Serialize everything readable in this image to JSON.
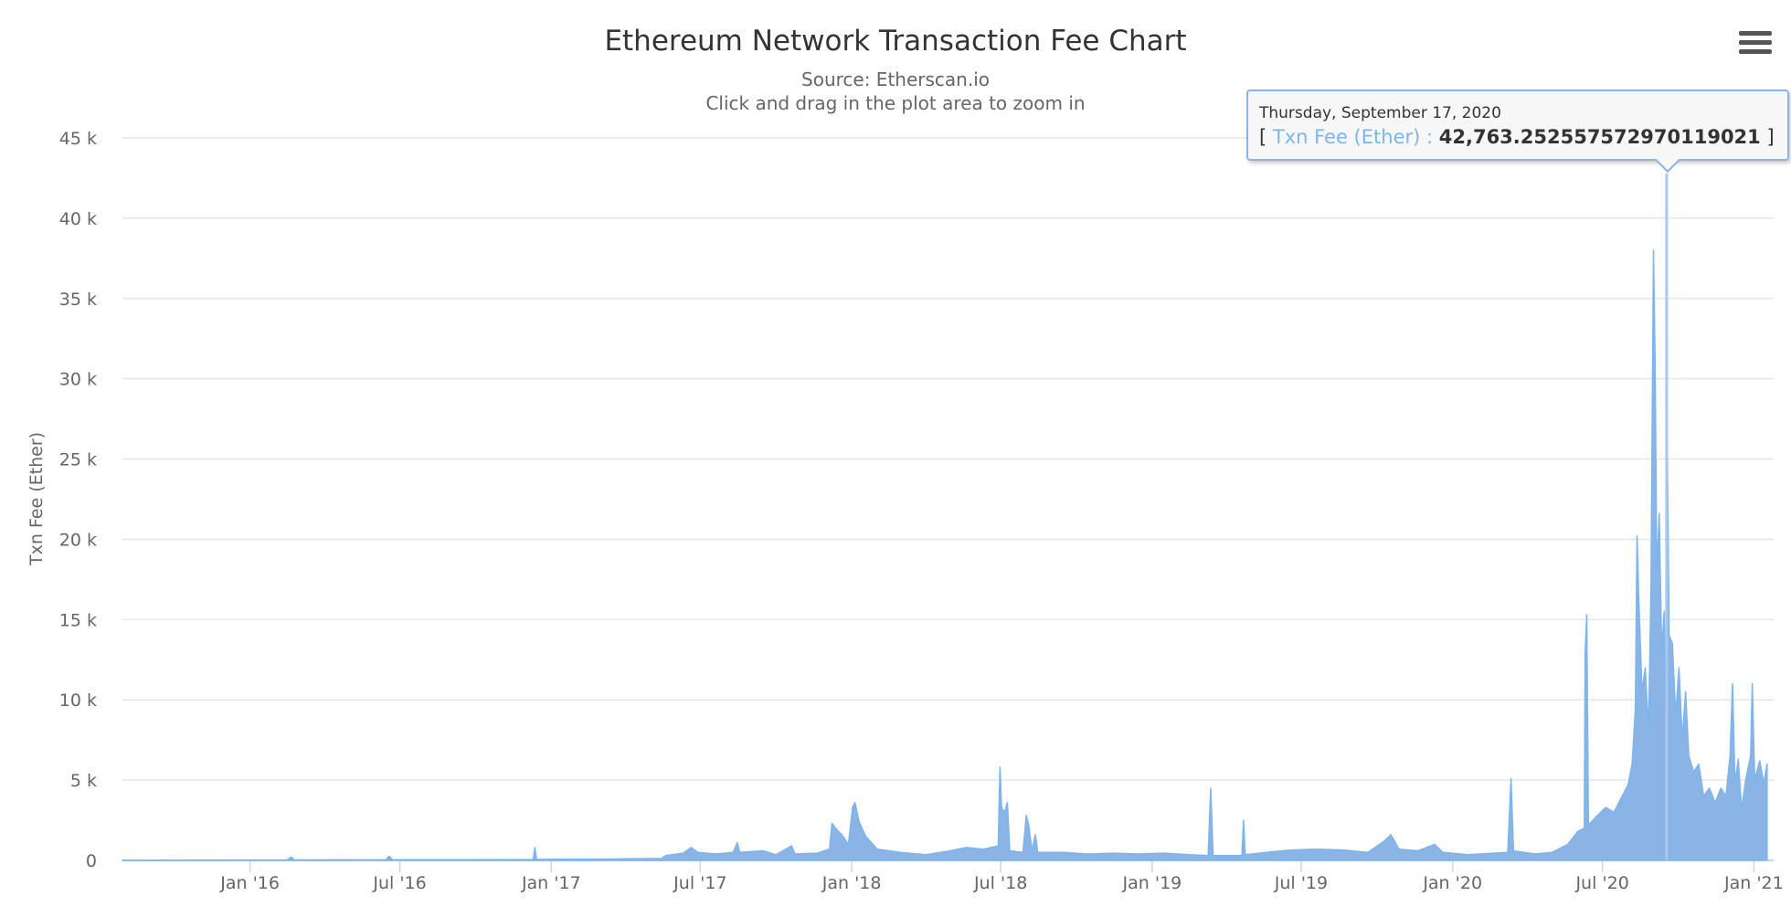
{
  "chart_data": {
    "type": "area",
    "title": "Ethereum Network Transaction Fee Chart",
    "subtitle_lines": [
      "Source: Etherscan.io",
      "Click and drag in the plot area to zoom in"
    ],
    "ylabel": "Txn Fee (Ether)",
    "xlabel": "",
    "ylim": [
      0,
      45000
    ],
    "yticks": [
      0,
      5000,
      10000,
      15000,
      20000,
      25000,
      30000,
      35000,
      40000,
      45000
    ],
    "ytick_labels": [
      "0",
      "5 k",
      "10 k",
      "15 k",
      "20 k",
      "25 k",
      "30 k",
      "35 k",
      "40 k",
      "45 k"
    ],
    "xlim": [
      "2015-07-30",
      "2021-01-25"
    ],
    "xticks": [
      "2016-01-01",
      "2016-07-01",
      "2017-01-01",
      "2017-07-01",
      "2018-01-01",
      "2018-07-01",
      "2019-01-01",
      "2019-07-01",
      "2020-01-01",
      "2020-07-01",
      "2021-01-01"
    ],
    "xtick_labels": [
      "Jan '16",
      "Jul '16",
      "Jan '17",
      "Jul '17",
      "Jan '18",
      "Jul '18",
      "Jan '19",
      "Jul '19",
      "Jan '20",
      "Jul '20",
      "Jan '21"
    ],
    "grid": true,
    "legend": "none",
    "colors": {
      "series": "#7cb5ec",
      "fill": "#8ab4e6",
      "grid": "#e6e6e6",
      "axis": "#ccd6eb"
    },
    "series": [
      {
        "name": "Txn Fee (Ether)",
        "data": [
          [
            "2015-07-30",
            5
          ],
          [
            "2015-10-01",
            15
          ],
          [
            "2016-01-01",
            20
          ],
          [
            "2016-02-15",
            30
          ],
          [
            "2016-02-20",
            200
          ],
          [
            "2016-02-24",
            30
          ],
          [
            "2016-06-14",
            40
          ],
          [
            "2016-06-18",
            260
          ],
          [
            "2016-06-22",
            40
          ],
          [
            "2016-12-01",
            50
          ],
          [
            "2016-12-10",
            50
          ],
          [
            "2016-12-12",
            800
          ],
          [
            "2016-12-14",
            60
          ],
          [
            "2017-03-01",
            80
          ],
          [
            "2017-05-15",
            120
          ],
          [
            "2017-05-20",
            300
          ],
          [
            "2017-06-10",
            450
          ],
          [
            "2017-06-20",
            800
          ],
          [
            "2017-06-28",
            500
          ],
          [
            "2017-07-20",
            400
          ],
          [
            "2017-08-10",
            500
          ],
          [
            "2017-08-15",
            1100
          ],
          [
            "2017-08-18",
            500
          ],
          [
            "2017-09-15",
            600
          ],
          [
            "2017-10-01",
            350
          ],
          [
            "2017-10-20",
            900
          ],
          [
            "2017-10-24",
            400
          ],
          [
            "2017-11-20",
            450
          ],
          [
            "2017-12-05",
            700
          ],
          [
            "2017-12-08",
            2300
          ],
          [
            "2017-12-14",
            1900
          ],
          [
            "2017-12-20",
            1600
          ],
          [
            "2017-12-28",
            1000
          ],
          [
            "2018-01-02",
            3300
          ],
          [
            "2018-01-05",
            3600
          ],
          [
            "2018-01-10",
            2400
          ],
          [
            "2018-01-18",
            1500
          ],
          [
            "2018-02-01",
            700
          ],
          [
            "2018-03-01",
            500
          ],
          [
            "2018-04-01",
            350
          ],
          [
            "2018-05-01",
            600
          ],
          [
            "2018-05-20",
            800
          ],
          [
            "2018-06-10",
            700
          ],
          [
            "2018-06-28",
            900
          ],
          [
            "2018-06-30",
            5800
          ],
          [
            "2018-07-02",
            3300
          ],
          [
            "2018-07-06",
            3000
          ],
          [
            "2018-07-09",
            3600
          ],
          [
            "2018-07-12",
            600
          ],
          [
            "2018-07-28",
            500
          ],
          [
            "2018-08-01",
            2800
          ],
          [
            "2018-08-04",
            2200
          ],
          [
            "2018-08-08",
            600
          ],
          [
            "2018-08-12",
            1600
          ],
          [
            "2018-08-15",
            500
          ],
          [
            "2018-09-15",
            500
          ],
          [
            "2018-10-15",
            400
          ],
          [
            "2018-11-15",
            450
          ],
          [
            "2018-12-15",
            400
          ],
          [
            "2019-01-15",
            450
          ],
          [
            "2019-02-15",
            350
          ],
          [
            "2019-03-10",
            300
          ],
          [
            "2019-03-13",
            4500
          ],
          [
            "2019-03-16",
            300
          ],
          [
            "2019-04-20",
            300
          ],
          [
            "2019-04-22",
            2500
          ],
          [
            "2019-04-24",
            350
          ],
          [
            "2019-05-20",
            500
          ],
          [
            "2019-06-20",
            650
          ],
          [
            "2019-07-20",
            700
          ],
          [
            "2019-08-20",
            650
          ],
          [
            "2019-09-20",
            500
          ],
          [
            "2019-10-10",
            1200
          ],
          [
            "2019-10-18",
            1600
          ],
          [
            "2019-10-28",
            700
          ],
          [
            "2019-11-20",
            600
          ],
          [
            "2019-12-10",
            1000
          ],
          [
            "2019-12-20",
            500
          ],
          [
            "2020-01-20",
            350
          ],
          [
            "2020-02-20",
            450
          ],
          [
            "2020-03-08",
            500
          ],
          [
            "2020-03-12",
            5100
          ],
          [
            "2020-03-15",
            600
          ],
          [
            "2020-04-10",
            400
          ],
          [
            "2020-05-01",
            500
          ],
          [
            "2020-05-20",
            1000
          ],
          [
            "2020-06-01",
            1800
          ],
          [
            "2020-06-09",
            2000
          ],
          [
            "2020-06-10",
            13000
          ],
          [
            "2020-06-12",
            15300
          ],
          [
            "2020-06-14",
            2200
          ],
          [
            "2020-06-25",
            2800
          ],
          [
            "2020-07-05",
            3300
          ],
          [
            "2020-07-15",
            3000
          ],
          [
            "2020-07-25",
            4000
          ],
          [
            "2020-08-01",
            4700
          ],
          [
            "2020-08-06",
            6000
          ],
          [
            "2020-08-10",
            9500
          ],
          [
            "2020-08-12",
            20200
          ],
          [
            "2020-08-14",
            16500
          ],
          [
            "2020-08-18",
            10500
          ],
          [
            "2020-08-22",
            12000
          ],
          [
            "2020-08-26",
            8000
          ],
          [
            "2020-08-29",
            17000
          ],
          [
            "2020-09-01",
            38000
          ],
          [
            "2020-09-03",
            31000
          ],
          [
            "2020-09-05",
            18000
          ],
          [
            "2020-09-08",
            21600
          ],
          [
            "2020-09-11",
            13000
          ],
          [
            "2020-09-14",
            15500
          ],
          [
            "2020-09-16",
            9000
          ],
          [
            "2020-09-17",
            42763.25255757297
          ],
          [
            "2020-09-18",
            25000
          ],
          [
            "2020-09-20",
            14000
          ],
          [
            "2020-09-24",
            13500
          ],
          [
            "2020-09-28",
            9000
          ],
          [
            "2020-10-02",
            12000
          ],
          [
            "2020-10-06",
            7500
          ],
          [
            "2020-10-10",
            10500
          ],
          [
            "2020-10-14",
            6500
          ],
          [
            "2020-10-20",
            5500
          ],
          [
            "2020-10-26",
            6000
          ],
          [
            "2020-11-01",
            4000
          ],
          [
            "2020-11-08",
            4500
          ],
          [
            "2020-11-15",
            3600
          ],
          [
            "2020-11-22",
            4500
          ],
          [
            "2020-11-28",
            4000
          ],
          [
            "2020-12-03",
            6500
          ],
          [
            "2020-12-06",
            11000
          ],
          [
            "2020-12-09",
            4800
          ],
          [
            "2020-12-13",
            6300
          ],
          [
            "2020-12-17",
            3200
          ],
          [
            "2020-12-22",
            5000
          ],
          [
            "2020-12-28",
            6500
          ],
          [
            "2020-12-30",
            11000
          ],
          [
            "2021-01-02",
            5000
          ],
          [
            "2021-01-08",
            6200
          ],
          [
            "2021-01-13",
            4800
          ],
          [
            "2021-01-17",
            6000
          ]
        ]
      }
    ],
    "tooltip": {
      "date": "Thursday, September 17, 2020",
      "series": "Txn Fee (Ether)",
      "value": "42,763.25255757297",
      "value_tail": "0119021",
      "point_date": "2020-09-17"
    }
  },
  "menu": {
    "icon": "hamburger-menu-icon"
  }
}
